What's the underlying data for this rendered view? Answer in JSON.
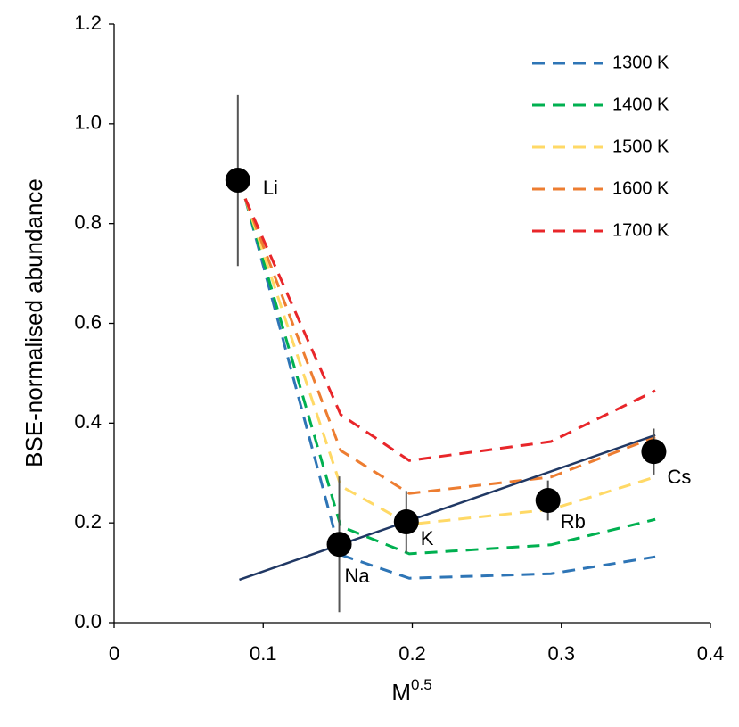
{
  "chart_data": {
    "type": "scatter",
    "ylabel": "BSE-normalised abundance",
    "xlabel": "M",
    "xlabel_superscript": "0.5",
    "xlim": [
      0,
      0.4
    ],
    "ylim": [
      0,
      1.2
    ],
    "xticks": [
      0,
      0.1,
      0.2,
      0.3,
      0.4
    ],
    "yticks": [
      {
        "value": 0,
        "label": "0.0"
      },
      0.2,
      0.4,
      0.6,
      0.8,
      {
        "value": 1,
        "label": "1.0"
      },
      1.2
    ],
    "grid": false,
    "legend": "upper right",
    "points": {
      "labels": [
        "Li",
        "Na",
        "K",
        "Rb",
        "Cs"
      ],
      "x": [
        0.083,
        0.151,
        0.196,
        0.291,
        0.362
      ],
      "y": [
        0.887,
        0.157,
        0.202,
        0.245,
        0.343
      ],
      "errors": [
        0.172,
        0.136,
        0.062,
        0.04,
        0.046
      ],
      "color": "#000000"
    },
    "fit": {
      "x": [
        0.084,
        0.363
      ],
      "y": [
        0.086,
        0.376
      ],
      "color": "#203864"
    },
    "model_x": [
      0.088,
      0.152,
      0.198,
      0.293,
      0.363
    ],
    "series": [
      {
        "name": "1300 K",
        "color": "#2e75b6",
        "values": [
          0.85,
          0.136,
          0.089,
          0.098,
          0.132
        ]
      },
      {
        "name": "1400 K",
        "color": "#00b050",
        "values": [
          0.85,
          0.193,
          0.138,
          0.156,
          0.207
        ]
      },
      {
        "name": "1500 K",
        "color": "#ffd966",
        "values": [
          0.85,
          0.274,
          0.197,
          0.227,
          0.292
        ]
      },
      {
        "name": "1600 K",
        "color": "#ed7d31",
        "values": [
          0.85,
          0.345,
          0.259,
          0.292,
          0.372
        ]
      },
      {
        "name": "1700 K",
        "color": "#e8262a",
        "values": [
          0.85,
          0.417,
          0.325,
          0.363,
          0.465
        ]
      }
    ]
  }
}
